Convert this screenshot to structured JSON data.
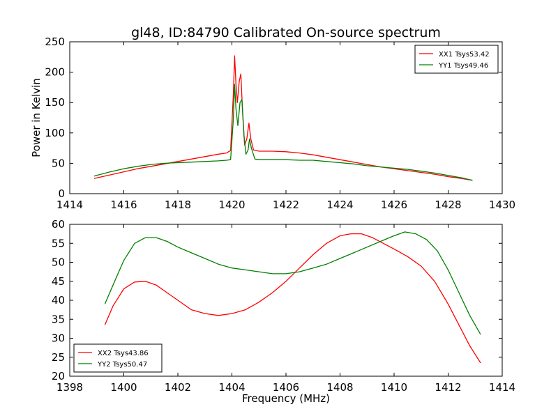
{
  "figure": {
    "title": "gl48, ID:84790 Calibrated On-source spectrum"
  },
  "chart_data": [
    {
      "type": "line",
      "ylabel": "Power in Kelvin",
      "xlabel": "",
      "xlim": [
        1414,
        1430
      ],
      "ylim": [
        0,
        250
      ],
      "xticks": [
        1414,
        1416,
        1418,
        1420,
        1422,
        1424,
        1426,
        1428,
        1430
      ],
      "yticks": [
        0,
        50,
        100,
        150,
        200,
        250
      ],
      "legend": "top-right",
      "grid": false,
      "series": [
        {
          "name": "XX1 Tsys53.42",
          "color": "#ff0000",
          "x": [
            1414.9,
            1415.5,
            1416.0,
            1416.5,
            1417.0,
            1417.5,
            1418.0,
            1418.5,
            1419.0,
            1419.5,
            1419.8,
            1419.95,
            1420.05,
            1420.1,
            1420.15,
            1420.2,
            1420.27,
            1420.33,
            1420.4,
            1420.47,
            1420.55,
            1420.63,
            1420.7,
            1420.8,
            1421.0,
            1421.5,
            1422.0,
            1422.5,
            1423.0,
            1423.5,
            1424.0,
            1424.5,
            1425.0,
            1425.5,
            1426.0,
            1426.5,
            1427.0,
            1427.5,
            1428.0,
            1428.5,
            1428.9
          ],
          "y": [
            25,
            31,
            36,
            41,
            45,
            49,
            53,
            57,
            61,
            65,
            67,
            71,
            160,
            227,
            180,
            150,
            185,
            197,
            130,
            80,
            90,
            116,
            90,
            72,
            70,
            70,
            69,
            67,
            64,
            60,
            56,
            52,
            48,
            44,
            41,
            38,
            35,
            32,
            28,
            25,
            22
          ]
        },
        {
          "name": "YY1 Tsys49.46",
          "color": "#008000",
          "x": [
            1414.9,
            1415.5,
            1416.0,
            1416.5,
            1417.0,
            1417.5,
            1418.0,
            1418.5,
            1419.0,
            1419.5,
            1419.8,
            1419.95,
            1420.05,
            1420.1,
            1420.15,
            1420.22,
            1420.3,
            1420.37,
            1420.45,
            1420.52,
            1420.6,
            1420.65,
            1420.72,
            1420.85,
            1421.0,
            1421.5,
            1422.0,
            1422.5,
            1423.0,
            1423.5,
            1424.0,
            1424.5,
            1425.0,
            1425.5,
            1426.0,
            1426.5,
            1427.0,
            1427.5,
            1428.0,
            1428.5,
            1428.9
          ],
          "y": [
            29,
            36,
            41,
            45,
            48,
            50,
            51,
            52,
            53,
            54,
            55,
            56,
            120,
            180,
            140,
            112,
            150,
            155,
            95,
            65,
            72,
            90,
            75,
            57,
            56,
            56,
            56,
            55,
            55,
            53,
            51,
            49,
            46,
            44,
            42,
            40,
            37,
            34,
            30,
            26,
            22
          ]
        }
      ]
    },
    {
      "type": "line",
      "ylabel": "",
      "xlabel": "Frequency (MHz)",
      "xlim": [
        1398,
        1414
      ],
      "ylim": [
        20,
        60
      ],
      "xticks": [
        1398,
        1400,
        1402,
        1404,
        1406,
        1408,
        1410,
        1412,
        1414
      ],
      "yticks": [
        20,
        25,
        30,
        35,
        40,
        45,
        50,
        55,
        60
      ],
      "legend": "bottom-left",
      "grid": false,
      "series": [
        {
          "name": "XX2 Tsys43.86",
          "color": "#ff0000",
          "x": [
            1399.3,
            1399.6,
            1400.0,
            1400.4,
            1400.8,
            1401.2,
            1401.6,
            1402.0,
            1402.5,
            1403.0,
            1403.5,
            1404.0,
            1404.5,
            1405.0,
            1405.5,
            1406.0,
            1406.5,
            1407.0,
            1407.5,
            1408.0,
            1408.4,
            1408.8,
            1409.2,
            1409.6,
            1410.0,
            1410.5,
            1411.0,
            1411.5,
            1412.0,
            1412.4,
            1412.8,
            1413.2
          ],
          "y": [
            33.5,
            38.5,
            43,
            44.8,
            45,
            44,
            42,
            40,
            37.5,
            36.5,
            36,
            36.5,
            37.5,
            39.5,
            42,
            45,
            48.5,
            52,
            55,
            57,
            57.5,
            57.5,
            56.5,
            55,
            53.5,
            51.5,
            49,
            45,
            39,
            33.5,
            28,
            23.5
          ]
        },
        {
          "name": "YY2 Tsys50.47",
          "color": "#008000",
          "x": [
            1399.3,
            1399.6,
            1400.0,
            1400.4,
            1400.8,
            1401.2,
            1401.6,
            1402.0,
            1402.5,
            1403.0,
            1403.5,
            1404.0,
            1404.5,
            1405.0,
            1405.5,
            1406.0,
            1406.5,
            1407.0,
            1407.5,
            1408.0,
            1408.5,
            1409.0,
            1409.5,
            1410.0,
            1410.4,
            1410.8,
            1411.2,
            1411.6,
            1412.0,
            1412.4,
            1412.8,
            1413.2
          ],
          "y": [
            39,
            44,
            50.5,
            55,
            56.5,
            56.5,
            55.5,
            54,
            52.5,
            51,
            49.5,
            48.5,
            48,
            47.5,
            47,
            47,
            47.5,
            48.5,
            49.5,
            51,
            52.5,
            54,
            55.5,
            57,
            58,
            57.5,
            56,
            53,
            48,
            42,
            36,
            31
          ]
        }
      ]
    }
  ]
}
